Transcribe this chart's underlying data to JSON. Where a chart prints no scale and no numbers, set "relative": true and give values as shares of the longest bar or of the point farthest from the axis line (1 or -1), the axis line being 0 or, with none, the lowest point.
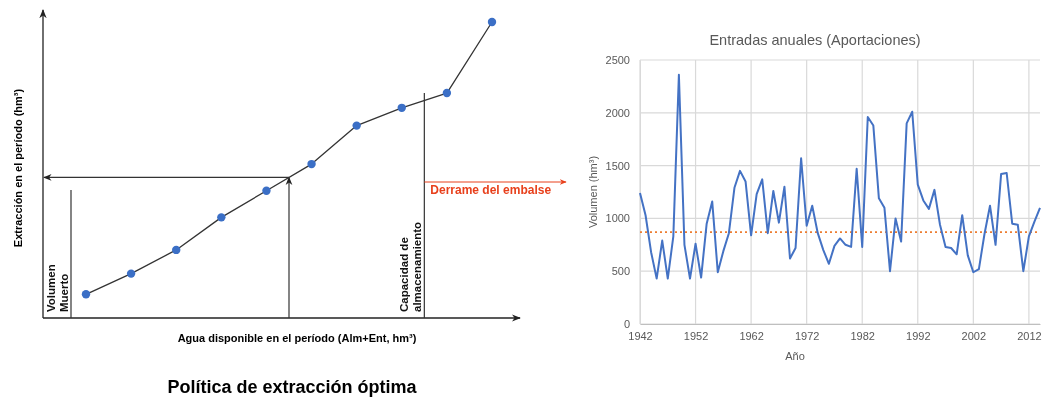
{
  "chart_data": [
    {
      "type": "line",
      "relative": true,
      "marker": "circle",
      "title": "Política de extracción óptima",
      "xlabel": "Agua disponible en el período (Alm+Ent, hm³)",
      "ylabel": "Extracción en el período (hm³)",
      "categories": [
        null,
        null,
        null,
        null,
        null,
        null,
        null,
        null,
        null,
        null
      ],
      "series": [
        {
          "color": "#333333",
          "values": [
            0.08,
            0.15,
            0.23,
            0.34,
            0.43,
            0.52,
            0.65,
            0.71,
            0.76,
            1
          ]
        }
      ],
      "annotations": [
        "Volumen Muerto",
        "Capacidad de almacenamiento",
        "Derrame del embalse"
      ]
    },
    {
      "type": "line",
      "title": "Entradas anuales (Aportaciones)",
      "xlabel": "Año",
      "ylabel": "Volumen (hm³)",
      "grid": true,
      "xlim": [
        1942,
        2014
      ],
      "xticks": [
        1942,
        1952,
        1962,
        1972,
        1982,
        1992,
        2002,
        2012
      ],
      "ylim": [
        0,
        2500
      ],
      "yticks": [
        0,
        500,
        1000,
        1500,
        2000,
        2500
      ],
      "x": [
        1942,
        1943,
        1944,
        1945,
        1946,
        1947,
        1948,
        1949,
        1950,
        1951,
        1952,
        1953,
        1954,
        1955,
        1956,
        1957,
        1958,
        1959,
        1960,
        1961,
        1962,
        1963,
        1964,
        1965,
        1966,
        1967,
        1968,
        1969,
        1970,
        1971,
        1972,
        1973,
        1974,
        1975,
        1976,
        1977,
        1978,
        1979,
        1980,
        1981,
        1982,
        1983,
        1984,
        1985,
        1986,
        1987,
        1988,
        1989,
        1990,
        1991,
        1992,
        1993,
        1994,
        1995,
        1996,
        1997,
        1998,
        1999,
        2000,
        2001,
        2002,
        2003,
        2004,
        2005,
        2006,
        2007,
        2008,
        2009,
        2010,
        2011,
        2012,
        2013,
        2014
      ],
      "series": [
        {
          "color": "#4472c4",
          "values": [
            1240,
            1030,
            680,
            430,
            790,
            430,
            830,
            2360,
            750,
            430,
            760,
            440,
            950,
            1160,
            490,
            690,
            860,
            1290,
            1450,
            1350,
            840,
            1230,
            1370,
            860,
            1260,
            960,
            1300,
            620,
            720,
            1570,
            930,
            1120,
            860,
            700,
            570,
            740,
            810,
            750,
            730,
            1470,
            730,
            1960,
            1880,
            1190,
            1100,
            500,
            1000,
            780,
            1900,
            2010,
            1320,
            1170,
            1090,
            1270,
            940,
            730,
            720,
            660,
            1030,
            650,
            490,
            520,
            850,
            1120,
            750,
            1420,
            1430,
            950,
            940,
            500,
            830,
            970,
            1100
          ]
        }
      ],
      "ref_lines": [
        {
          "axis": "y",
          "value": 870,
          "color": "#ed7d31",
          "line_style": "dotted"
        }
      ]
    }
  ]
}
